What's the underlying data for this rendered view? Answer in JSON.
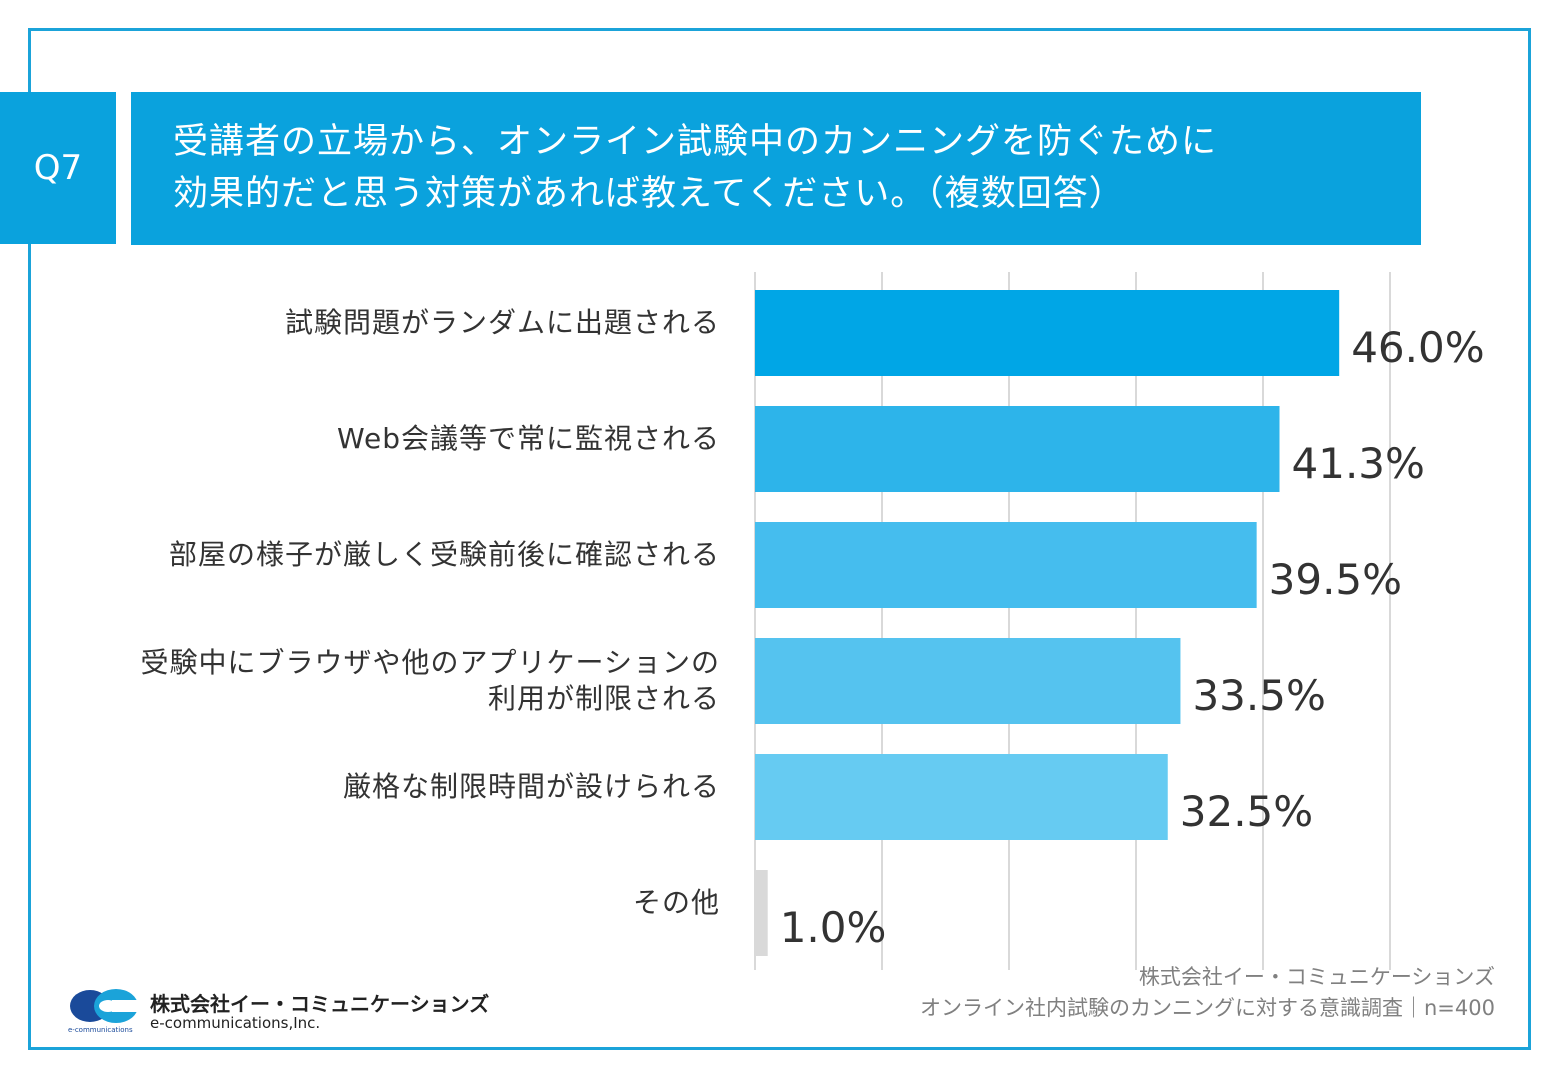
{
  "badge": "Q7",
  "question": {
    "line1": "受講者の立場から、オンライン試験中のカンニングを防ぐために",
    "line2": "効果的だと思う対策があれば教えてください。（複数回答）"
  },
  "chart_data": {
    "type": "bar",
    "orientation": "horizontal",
    "title": "",
    "xlabel": "",
    "ylabel": "",
    "xlim": [
      0,
      50
    ],
    "grid": true,
    "unit": "%",
    "categories": [
      [
        "試験問題がランダムに出題される"
      ],
      [
        "Web会議等で常に監視される"
      ],
      [
        "部屋の様子が厳しく受験前後に確認される"
      ],
      [
        "受験中にブラウザや他のアプリケーションの",
        "利用が制限される"
      ],
      [
        "厳格な制限時間が設けられる"
      ],
      [
        "その他"
      ]
    ],
    "values": [
      46.0,
      41.3,
      39.5,
      33.5,
      32.5,
      1.0
    ],
    "data_labels": [
      "46.0%",
      "41.3%",
      "39.5%",
      "33.5%",
      "32.5%",
      "1.0%"
    ],
    "bar_colors": [
      "#00a6e6",
      "#2db4ea",
      "#45bdee",
      "#55c3ef",
      "#66cbf2",
      "#d9d9d9"
    ]
  },
  "footer": {
    "company": "株式会社イー・コミュニケーションズ",
    "survey": "オンライン社内試験のカンニングに対する意識調査｜n=400"
  },
  "logo": {
    "name_jp": "株式会社イー・コミュニケーションズ",
    "name_en": "e-communications,Inc.",
    "small_text": "e-communications"
  }
}
